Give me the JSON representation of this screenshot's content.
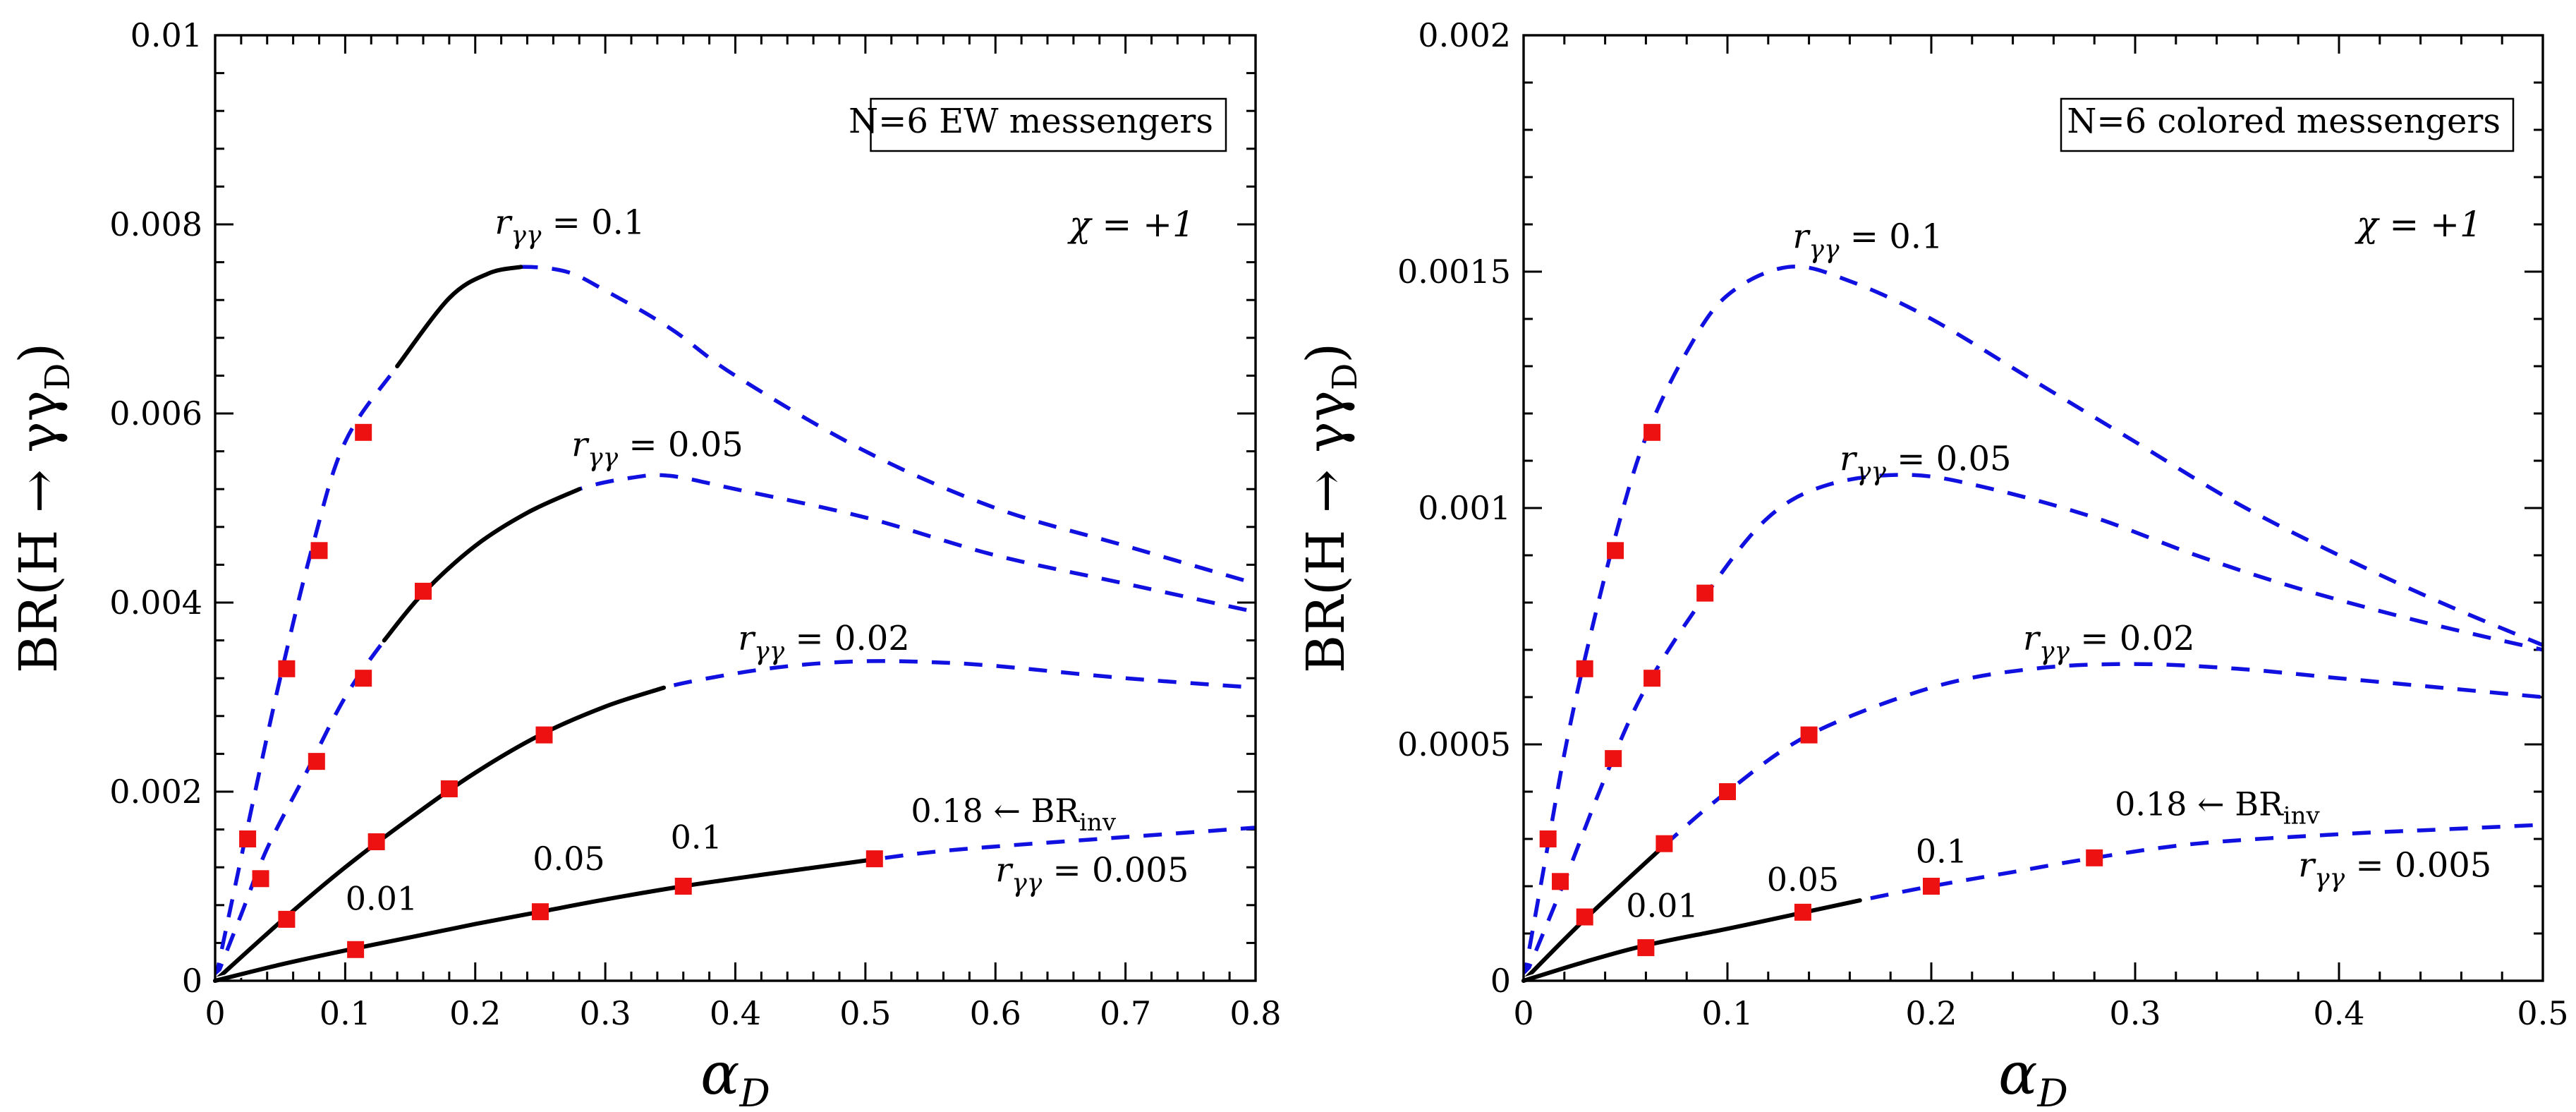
{
  "chart_data": [
    {
      "type": "line",
      "panel": "left",
      "legend_box": "N=6 EW messengers",
      "annotation": "χ = +1",
      "xlabel": "α_D",
      "ylabel": "BR(H → γγ_D)",
      "xlim": [
        0,
        0.8
      ],
      "ylim": [
        0,
        0.01
      ],
      "x_ticks": [
        "0",
        "0.1",
        "0.2",
        "0.3",
        "0.4",
        "0.5",
        "0.6",
        "0.7",
        "0.8"
      ],
      "y_ticks": [
        "0",
        "0.002",
        "0.004",
        "0.006",
        "0.008",
        "0.01"
      ],
      "series": [
        {
          "name": "r_γγ = 0.1",
          "label": "r",
          "label_sub": "γγ",
          "label_value": " = 0.1",
          "label_at": [
            0.215,
            0.0079
          ],
          "solid_range": [
            0.14,
            0.235
          ],
          "points": [
            [
              0,
              0
            ],
            [
              0.01,
              0.00065
            ],
            [
              0.02,
              0.0013
            ],
            [
              0.03,
              0.00195
            ],
            [
              0.05,
              0.0032
            ],
            [
              0.075,
              0.0046
            ],
            [
              0.1,
              0.0057
            ],
            [
              0.14,
              0.0065
            ],
            [
              0.18,
              0.00722
            ],
            [
              0.21,
              0.00748
            ],
            [
              0.235,
              0.00755
            ],
            [
              0.27,
              0.0075
            ],
            [
              0.3,
              0.0073
            ],
            [
              0.35,
              0.0069
            ],
            [
              0.4,
              0.0064
            ],
            [
              0.5,
              0.0056
            ],
            [
              0.6,
              0.005
            ],
            [
              0.7,
              0.0046
            ],
            [
              0.8,
              0.0042
            ]
          ],
          "markers": [
            [
              0.025,
              0.0015
            ],
            [
              0.055,
              0.0033
            ],
            [
              0.08,
              0.00455
            ],
            [
              0.114,
              0.0058
            ]
          ]
        },
        {
          "name": "r_γγ = 0.05",
          "label": "r",
          "label_sub": "γγ",
          "label_value": " = 0.05",
          "label_at": [
            0.274,
            0.00555
          ],
          "solid_range": [
            0.13,
            0.28
          ],
          "points": [
            [
              0,
              0
            ],
            [
              0.02,
              0.0007
            ],
            [
              0.04,
              0.0014
            ],
            [
              0.07,
              0.0022
            ],
            [
              0.1,
              0.003
            ],
            [
              0.13,
              0.0036
            ],
            [
              0.16,
              0.0041
            ],
            [
              0.2,
              0.0046
            ],
            [
              0.24,
              0.00495
            ],
            [
              0.28,
              0.0052
            ],
            [
              0.32,
              0.00532
            ],
            [
              0.35,
              0.00534
            ],
            [
              0.4,
              0.0052
            ],
            [
              0.5,
              0.0049
            ],
            [
              0.6,
              0.0045
            ],
            [
              0.7,
              0.0042
            ],
            [
              0.8,
              0.0039
            ]
          ],
          "markers": [
            [
              0.035,
              0.00108
            ],
            [
              0.078,
              0.00232
            ],
            [
              0.114,
              0.0032
            ],
            [
              0.16,
              0.00412
            ]
          ]
        },
        {
          "name": "r_γγ = 0.02",
          "label": "r",
          "label_sub": "γγ",
          "label_value": " = 0.02",
          "label_at": [
            0.402,
            0.0035
          ],
          "solid_range": [
            0,
            0.345
          ],
          "points": [
            [
              0,
              0
            ],
            [
              0.05,
              0.00062
            ],
            [
              0.1,
              0.0012
            ],
            [
              0.15,
              0.00172
            ],
            [
              0.2,
              0.0022
            ],
            [
              0.25,
              0.0026
            ],
            [
              0.3,
              0.0029
            ],
            [
              0.345,
              0.0031
            ],
            [
              0.4,
              0.00325
            ],
            [
              0.45,
              0.00334
            ],
            [
              0.5,
              0.00338
            ],
            [
              0.55,
              0.00337
            ],
            [
              0.6,
              0.00333
            ],
            [
              0.7,
              0.0032
            ],
            [
              0.8,
              0.0031
            ]
          ],
          "markers": [
            [
              0.055,
              0.00065
            ],
            [
              0.124,
              0.00147
            ],
            [
              0.18,
              0.00203
            ],
            [
              0.253,
              0.0026
            ]
          ]
        },
        {
          "name": "r_γγ = 0.005",
          "label": "r",
          "label_sub": "γγ",
          "label_value": " = 0.005",
          "label_at": [
            0.6,
            0.00105
          ],
          "solid_range": [
            0,
            0.51
          ],
          "points": [
            [
              0,
              0
            ],
            [
              0.05,
              0.00017
            ],
            [
              0.1,
              0.00032
            ],
            [
              0.15,
              0.00046
            ],
            [
              0.2,
              0.0006
            ],
            [
              0.25,
              0.00073
            ],
            [
              0.3,
              0.00086
            ],
            [
              0.36,
              0.001
            ],
            [
              0.42,
              0.00112
            ],
            [
              0.51,
              0.00129
            ],
            [
              0.55,
              0.00136
            ],
            [
              0.6,
              0.00142
            ],
            [
              0.7,
              0.00152
            ],
            [
              0.8,
              0.00162
            ]
          ],
          "markers": [
            [
              0.108,
              0.00033
            ],
            [
              0.25,
              0.00073
            ],
            [
              0.36,
              0.001
            ],
            [
              0.507,
              0.00129
            ]
          ],
          "marker_labels": [
            {
              "text": "0.01",
              "at": [
                0.128,
                0.00075
              ]
            },
            {
              "text": "0.05",
              "at": [
                0.272,
                0.00117
              ]
            },
            {
              "text": "0.1",
              "at": [
                0.37,
                0.0014
              ]
            },
            {
              "text": "0.18 ← BR",
              "sub": "inv",
              "at": [
                0.535,
                0.00168
              ]
            }
          ]
        }
      ]
    },
    {
      "type": "line",
      "panel": "right",
      "legend_box": "N=6 colored messengers",
      "annotation": "χ = +1",
      "xlabel": "α_D",
      "ylabel": "BR(H → γγ_D)",
      "xlim": [
        0,
        0.5
      ],
      "ylim": [
        0,
        0.002
      ],
      "x_ticks": [
        "0",
        "0.1",
        "0.2",
        "0.3",
        "0.4",
        "0.5"
      ],
      "y_ticks": [
        "0",
        "0.0005",
        "0.001",
        "0.0015",
        "0.002"
      ],
      "series": [
        {
          "name": "r_γγ = 0.1",
          "label": "r",
          "label_sub": "γγ",
          "label_value": " = 0.1",
          "label_at": [
            0.132,
            0.00155
          ],
          "solid_range": null,
          "points": [
            [
              0,
              0
            ],
            [
              0.01,
              0.00024
            ],
            [
              0.02,
              0.00048
            ],
            [
              0.03,
              0.00068
            ],
            [
              0.045,
              0.00094
            ],
            [
              0.06,
              0.00115
            ],
            [
              0.08,
              0.00133
            ],
            [
              0.1,
              0.00145
            ],
            [
              0.13,
              0.00151
            ],
            [
              0.16,
              0.00148
            ],
            [
              0.2,
              0.0014
            ],
            [
              0.25,
              0.00127
            ],
            [
              0.3,
              0.00114
            ],
            [
              0.35,
              0.00101
            ],
            [
              0.4,
              0.0009
            ],
            [
              0.45,
              0.0008
            ],
            [
              0.5,
              0.00071
            ]
          ],
          "markers": [
            [
              0.012,
              0.0003
            ],
            [
              0.03,
              0.00066
            ],
            [
              0.045,
              0.00091
            ],
            [
              0.063,
              0.00116
            ]
          ]
        },
        {
          "name": "r_γγ = 0.05",
          "label": "r",
          "label_sub": "γγ",
          "label_value": " = 0.05",
          "label_at": [
            0.155,
            0.00108
          ],
          "solid_range": null,
          "points": [
            [
              0,
              0
            ],
            [
              0.02,
              0.00021
            ],
            [
              0.04,
              0.00043
            ],
            [
              0.06,
              0.00062
            ],
            [
              0.09,
              0.00082
            ],
            [
              0.12,
              0.00098
            ],
            [
              0.15,
              0.00105
            ],
            [
              0.19,
              0.00107
            ],
            [
              0.23,
              0.00104
            ],
            [
              0.28,
              0.00098
            ],
            [
              0.33,
              0.0009
            ],
            [
              0.38,
              0.00083
            ],
            [
              0.44,
              0.00076
            ],
            [
              0.5,
              0.0007
            ]
          ],
          "markers": [
            [
              0.018,
              0.00021
            ],
            [
              0.044,
              0.00047
            ],
            [
              0.063,
              0.00064
            ],
            [
              0.089,
              0.00082
            ]
          ]
        },
        {
          "name": "r_γγ = 0.02",
          "label": "r",
          "label_sub": "γγ",
          "label_value": " = 0.02",
          "label_at": [
            0.245,
            0.0007
          ],
          "solid_range": [
            0,
            0.07
          ],
          "points": [
            [
              0,
              0
            ],
            [
              0.03,
              0.00013
            ],
            [
              0.07,
              0.00029
            ],
            [
              0.1,
              0.0004
            ],
            [
              0.14,
              0.00052
            ],
            [
              0.2,
              0.00062
            ],
            [
              0.25,
              0.00066
            ],
            [
              0.3,
              0.00067
            ],
            [
              0.35,
              0.00066
            ],
            [
              0.4,
              0.00064
            ],
            [
              0.45,
              0.00062
            ],
            [
              0.5,
              0.0006
            ]
          ],
          "markers": [
            [
              0.03,
              0.000135
            ],
            [
              0.069,
              0.00029
            ],
            [
              0.1,
              0.0004
            ],
            [
              0.14,
              0.00052
            ]
          ]
        },
        {
          "name": "r_γγ = 0.005",
          "label": "r",
          "label_sub": "γγ",
          "label_value": " = 0.005",
          "label_at": [
            0.38,
            0.00022
          ],
          "solid_range": [
            0,
            0.165
          ],
          "points": [
            [
              0,
              0
            ],
            [
              0.03,
              4e-05
            ],
            [
              0.06,
              7.5e-05
            ],
            [
              0.1,
              0.00011
            ],
            [
              0.138,
              0.000145
            ],
            [
              0.165,
              0.00017
            ],
            [
              0.2,
              0.0002
            ],
            [
              0.24,
              0.00023
            ],
            [
              0.28,
              0.00026
            ],
            [
              0.33,
              0.00029
            ],
            [
              0.4,
              0.00031
            ],
            [
              0.45,
              0.00032
            ],
            [
              0.5,
              0.00033
            ]
          ],
          "markers": [
            [
              0.06,
              7e-05
            ],
            [
              0.137,
              0.000145
            ],
            [
              0.2,
              0.0002
            ],
            [
              0.28,
              0.00026
            ]
          ],
          "marker_labels": [
            {
              "text": "0.01",
              "at": [
                0.068,
                0.000135
              ]
            },
            {
              "text": "0.05",
              "at": [
                0.137,
                0.00019
              ]
            },
            {
              "text": "0.1",
              "at": [
                0.205,
                0.00025
              ]
            },
            {
              "text": "0.18 ← BR",
              "sub": "inv",
              "at": [
                0.29,
                0.00035
              ]
            }
          ]
        }
      ]
    }
  ]
}
